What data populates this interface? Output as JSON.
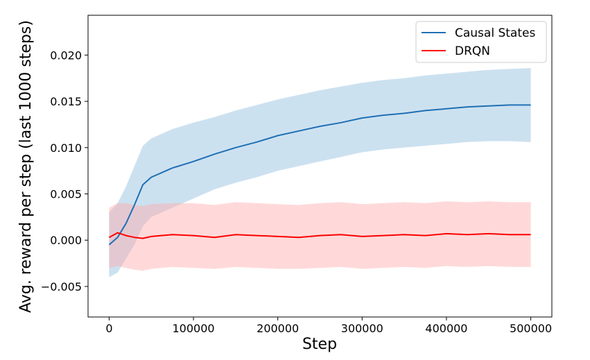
{
  "chart_data": {
    "type": "line",
    "title": "",
    "xlabel": "Step",
    "ylabel": "Avg. reward per step (last 1000 steps)",
    "xlim": [
      -25000,
      525000
    ],
    "ylim": [
      -0.0083,
      0.0243
    ],
    "xticks": [
      0,
      100000,
      200000,
      300000,
      400000,
      500000
    ],
    "xtick_labels": [
      "0",
      "100000",
      "200000",
      "300000",
      "400000",
      "500000"
    ],
    "yticks": [
      -0.005,
      0.0,
      0.005,
      0.01,
      0.015,
      0.02
    ],
    "ytick_labels": [
      "−0.005",
      "0.000",
      "0.005",
      "0.010",
      "0.015",
      "0.020"
    ],
    "grid": false,
    "legend_position": "top-right",
    "series": [
      {
        "name": "Causal States",
        "color": "#1f6fb4",
        "band_color": "#8fbcdd",
        "x": [
          0,
          10000,
          20000,
          30000,
          40000,
          50000,
          75000,
          100000,
          125000,
          150000,
          175000,
          200000,
          225000,
          250000,
          275000,
          300000,
          325000,
          350000,
          375000,
          400000,
          425000,
          450000,
          475000,
          500000
        ],
        "mean": [
          -0.0005,
          0.0003,
          0.0018,
          0.0038,
          0.006,
          0.0068,
          0.0078,
          0.0085,
          0.0093,
          0.01,
          0.0106,
          0.0113,
          0.0118,
          0.0123,
          0.0127,
          0.0132,
          0.0135,
          0.0137,
          0.014,
          0.0142,
          0.0144,
          0.0145,
          0.0146,
          0.0146
        ],
        "lower": [
          -0.004,
          -0.0035,
          -0.002,
          -0.0005,
          0.0015,
          0.0025,
          0.0035,
          0.0045,
          0.0055,
          0.0062,
          0.0068,
          0.0075,
          0.008,
          0.0085,
          0.009,
          0.0095,
          0.0098,
          0.01,
          0.0102,
          0.0104,
          0.0106,
          0.0107,
          0.0107,
          0.0106
        ],
        "upper": [
          0.003,
          0.004,
          0.0058,
          0.008,
          0.0102,
          0.011,
          0.012,
          0.0127,
          0.0133,
          0.014,
          0.0146,
          0.0152,
          0.0157,
          0.0162,
          0.0166,
          0.017,
          0.0173,
          0.0175,
          0.0178,
          0.018,
          0.0182,
          0.0184,
          0.0185,
          0.0186
        ]
      },
      {
        "name": "DRQN",
        "color": "#ff0000",
        "band_color": "#ffaaaa",
        "x": [
          0,
          10000,
          20000,
          30000,
          40000,
          50000,
          75000,
          100000,
          125000,
          150000,
          175000,
          200000,
          225000,
          250000,
          275000,
          300000,
          325000,
          350000,
          375000,
          400000,
          425000,
          450000,
          475000,
          500000
        ],
        "mean": [
          0.0003,
          0.0008,
          0.0005,
          0.0003,
          0.0002,
          0.0004,
          0.0006,
          0.0005,
          0.0003,
          0.0006,
          0.0005,
          0.0004,
          0.0003,
          0.0005,
          0.0006,
          0.0004,
          0.0005,
          0.0006,
          0.0005,
          0.0007,
          0.0006,
          0.0007,
          0.0006,
          0.0006
        ],
        "lower": [
          -0.003,
          -0.0028,
          -0.003,
          -0.0032,
          -0.0033,
          -0.0031,
          -0.0029,
          -0.003,
          -0.0031,
          -0.0029,
          -0.003,
          -0.0031,
          -0.0031,
          -0.003,
          -0.0029,
          -0.0031,
          -0.003,
          -0.0029,
          -0.003,
          -0.0028,
          -0.0029,
          -0.0028,
          -0.0029,
          -0.0029
        ],
        "upper": [
          0.0035,
          0.004,
          0.004,
          0.0038,
          0.0037,
          0.0039,
          0.004,
          0.004,
          0.0038,
          0.0041,
          0.004,
          0.0039,
          0.0038,
          0.004,
          0.0041,
          0.0039,
          0.004,
          0.0041,
          0.004,
          0.0042,
          0.0041,
          0.0042,
          0.0041,
          0.0041
        ]
      }
    ]
  }
}
